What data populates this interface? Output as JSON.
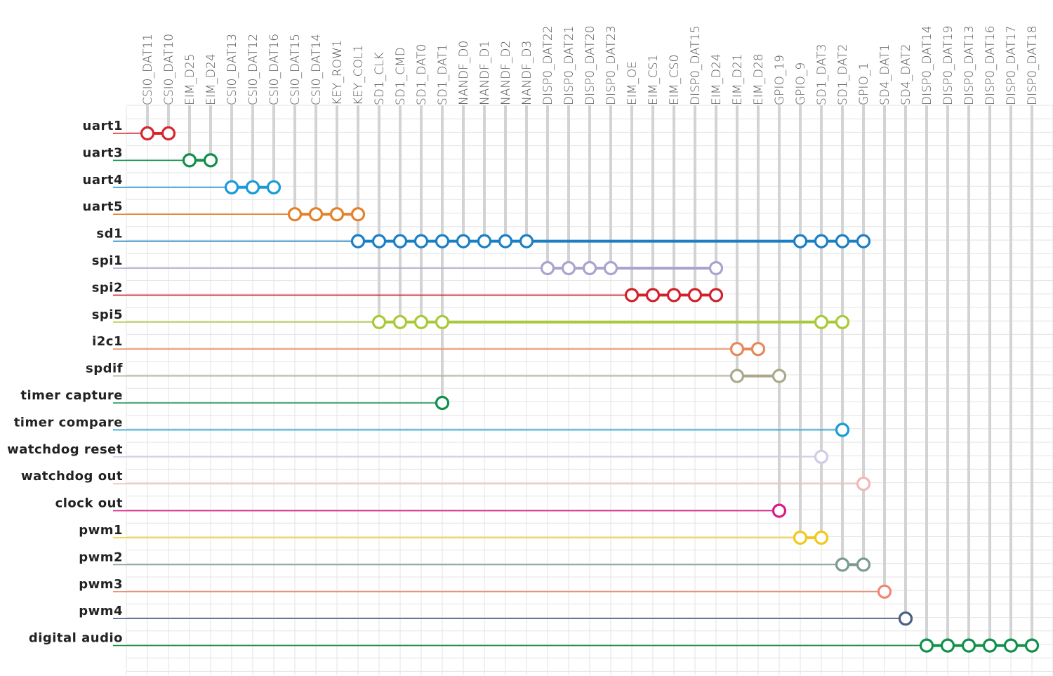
{
  "columns": [
    "CSI0_DAT11",
    "CSI0_DAT10",
    "EIM_D25",
    "EIM_D24",
    "CSI0_DAT13",
    "CSI0_DAT12",
    "CSI0_DAT16",
    "CSI0_DAT15",
    "CSI0_DAT14",
    "KEY_ROW1",
    "KEY_COL1",
    "SD1_CLK",
    "SD1_CMD",
    "SD1_DAT0",
    "SD1_DAT1",
    "NANDF_D0",
    "NANDF_D1",
    "NANDF_D2",
    "NANDF_D3",
    "DISP0_DAT22",
    "DISP0_DAT21",
    "DISP0_DAT20",
    "DISP0_DAT23",
    "EIM_OE",
    "EIM_CS1",
    "EIM_CS0",
    "DISP0_DAT15",
    "EIM_D24",
    "EIM_D21",
    "EIM_D28",
    "GPIO_19",
    "GPIO_9",
    "SD1_DAT3",
    "SD1_DAT2",
    "GPIO_1",
    "SD4_DAT1",
    "SD4_DAT2",
    "DISP0_DAT14",
    "DISP0_DAT19",
    "DISP0_DAT13",
    "DISP0_DAT16",
    "DISP0_DAT17",
    "DISP0_DAT18"
  ],
  "rows": [
    {
      "label": "uart1",
      "color": "#d8262e",
      "pins": [
        0,
        1
      ]
    },
    {
      "label": "uart3",
      "color": "#10904a",
      "pins": [
        2,
        3
      ]
    },
    {
      "label": "uart4",
      "color": "#1a9ad6",
      "pins": [
        4,
        5,
        6
      ]
    },
    {
      "label": "uart5",
      "color": "#e4822a",
      "pins": [
        7,
        8,
        9,
        10
      ]
    },
    {
      "label": "sd1",
      "color": "#1b7fc4",
      "pins": [
        10,
        11,
        12,
        13,
        14,
        15,
        16,
        17,
        18,
        31,
        32,
        33,
        34
      ]
    },
    {
      "label": "spi1",
      "color": "#a9a3cf",
      "pins": [
        19,
        20,
        21,
        22,
        27
      ]
    },
    {
      "label": "spi2",
      "color": "#d1222c",
      "pins": [
        23,
        24,
        25,
        26,
        27
      ]
    },
    {
      "label": "spi5",
      "color": "#a9c93a",
      "pins": [
        11,
        12,
        13,
        14,
        32,
        33
      ]
    },
    {
      "label": "i2c1",
      "color": "#e8885a",
      "pins": [
        28,
        29
      ]
    },
    {
      "label": "spdif",
      "color": "#aba98a",
      "pins": [
        28,
        30
      ]
    },
    {
      "label": "timer capture",
      "color": "#10904a",
      "pins": [
        14
      ]
    },
    {
      "label": "timer compare",
      "color": "#1a9ad6",
      "pins": [
        33
      ]
    },
    {
      "label": "watchdog reset",
      "color": "#cfcde6",
      "pins": [
        32
      ]
    },
    {
      "label": "watchdog out",
      "color": "#f2b8b8",
      "pins": [
        34
      ]
    },
    {
      "label": "clock out",
      "color": "#d81d85",
      "pins": [
        30
      ]
    },
    {
      "label": "pwm1",
      "color": "#f2c81a",
      "pins": [
        31,
        32
      ]
    },
    {
      "label": "pwm2",
      "color": "#7a9a92",
      "pins": [
        33,
        34
      ]
    },
    {
      "label": "pwm3",
      "color": "#ee8a72",
      "pins": [
        35
      ]
    },
    {
      "label": "pwm4",
      "color": "#4a5f80",
      "pins": [
        36
      ]
    },
    {
      "label": "digital audio",
      "color": "#10904a",
      "pins": [
        37,
        38,
        39,
        40,
        41,
        42
      ]
    }
  ]
}
